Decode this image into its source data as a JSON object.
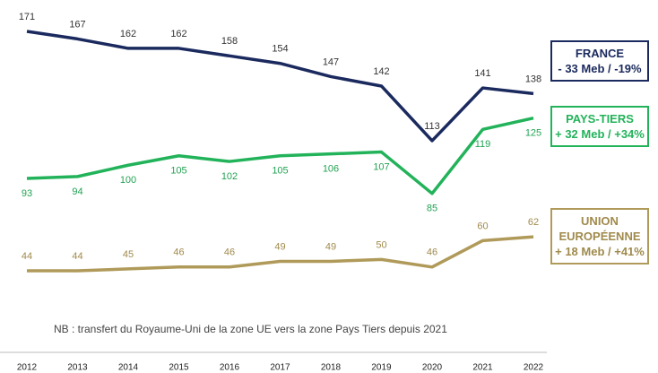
{
  "chart_data": {
    "type": "line",
    "categories": [
      "2012",
      "2013",
      "2014",
      "2015",
      "2016",
      "2017",
      "2018",
      "2019",
      "2020",
      "2021",
      "2022"
    ],
    "series": [
      {
        "name": "FRANCE",
        "change": "- 33 Meb / -19%",
        "color": "#1b2a5e",
        "label_color": "#333333",
        "values": [
          171,
          167,
          162,
          162,
          158,
          154,
          147,
          142,
          113,
          141,
          138
        ]
      },
      {
        "name": "PAYS-TIERS",
        "change": "+ 32 Meb / +34%",
        "color": "#22b35a",
        "label_color": "#22a352",
        "values": [
          93,
          94,
          100,
          105,
          102,
          105,
          106,
          107,
          85,
          119,
          125
        ]
      },
      {
        "name": "UNION EUROPÉENNE",
        "change": "+ 18 Meb / +41%",
        "color": "#b09a5a",
        "label_color": "#a08a4c",
        "values": [
          44,
          44,
          45,
          46,
          46,
          49,
          49,
          50,
          46,
          60,
          62
        ]
      }
    ],
    "note": "NB : transfert du Royaume-Uni de la zone UE vers la zone Pays Tiers depuis 2021"
  }
}
